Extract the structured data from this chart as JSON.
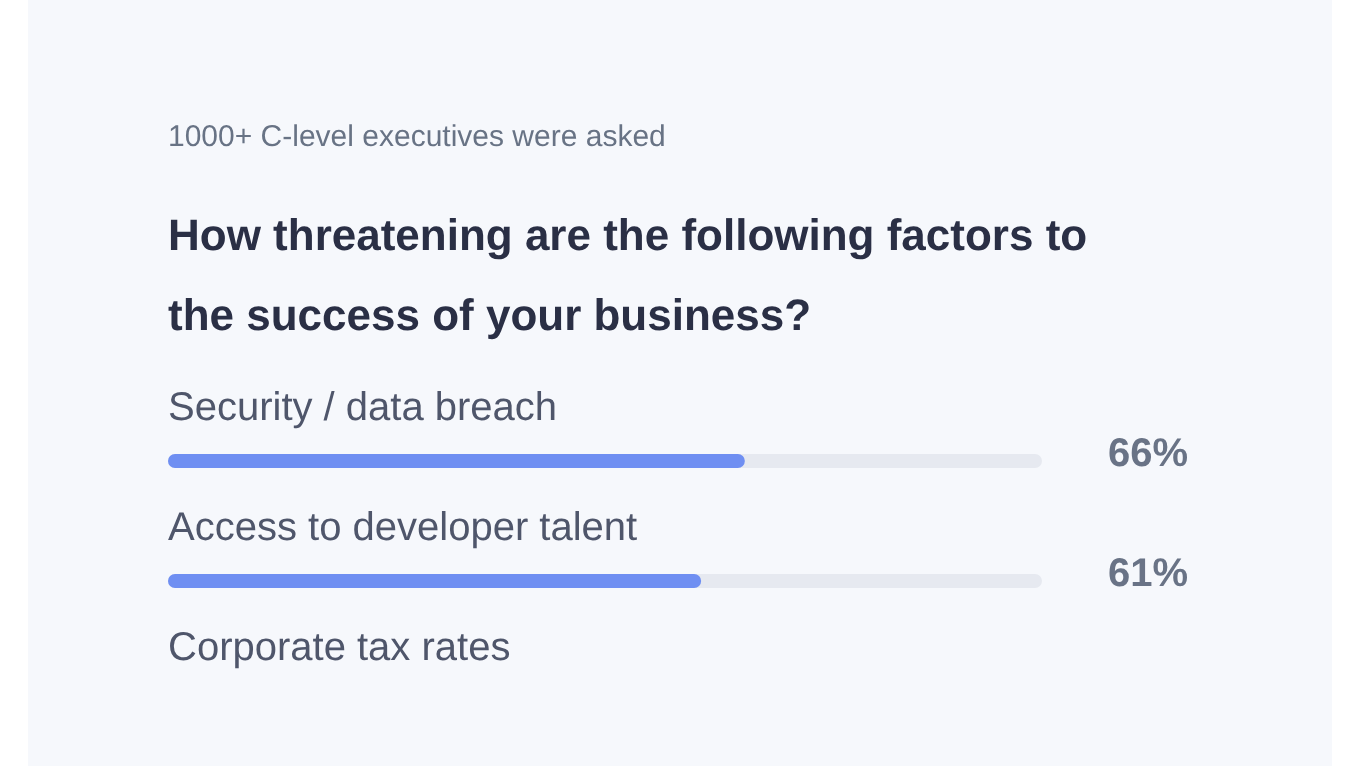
{
  "chart_data": {
    "type": "bar",
    "orientation": "horizontal",
    "subtitle": "1000+ C-level executives were asked",
    "title": "How threatening are the following factors to the success of your business?",
    "categories": [
      "Security / data breach",
      "Access to developer talent",
      "Corporate tax rates"
    ],
    "values": [
      66,
      61,
      null
    ],
    "value_labels": [
      "66%",
      "61%",
      null
    ],
    "color": "#6f8ff2",
    "xlim": [
      0,
      100
    ],
    "tick_labels": "y"
  }
}
